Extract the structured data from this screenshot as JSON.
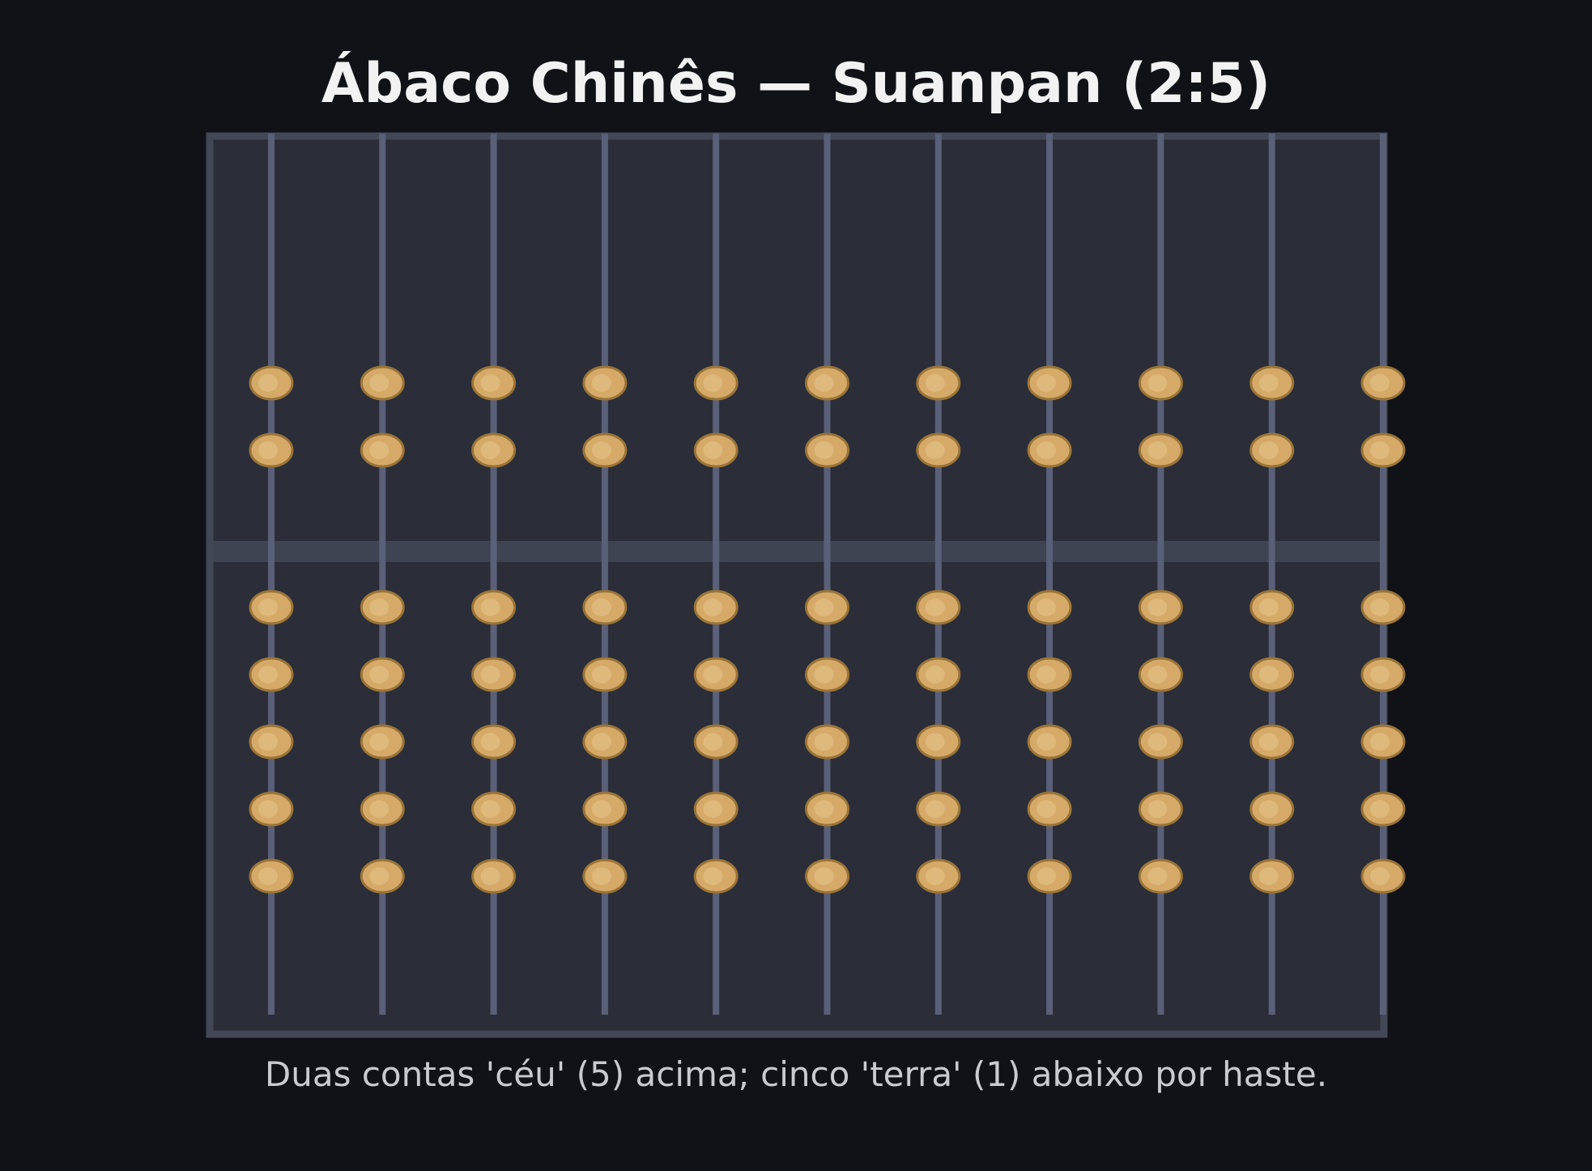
{
  "title": "Ábaco Chinês — Suanpan (2:5)",
  "caption": "Duas contas 'céu' (5) acima; cinco 'terra' (1) abaixo por haste.",
  "abacus": {
    "rods": 11,
    "heaven_beads_per_rod": 2,
    "earth_beads_per_rod": 5,
    "heaven_bead_value": 5,
    "earth_bead_value": 1
  },
  "colors": {
    "background": "#111217",
    "frame_fill": "#2b2e39",
    "frame_border": "#434856",
    "beam": "#3f4452",
    "rod": "#5a6078",
    "bead": "#d5a968",
    "bead_stroke": "#9a7437",
    "bead_highlight": "#e8c48c",
    "title": "#f2f2f2",
    "caption": "#c9cbd1"
  }
}
